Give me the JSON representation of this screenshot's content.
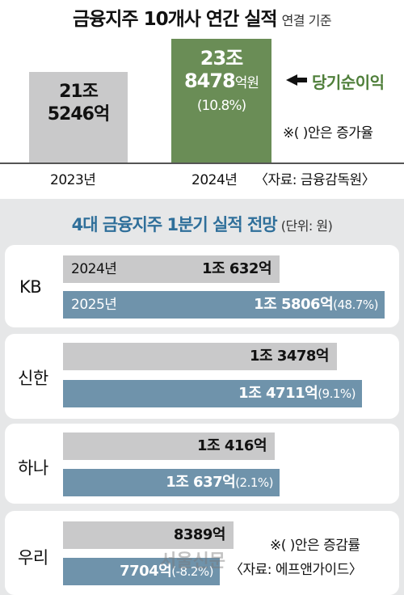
{
  "chart_data": [
    {
      "type": "bar",
      "title": "금융지주 10개사 연간 실적",
      "subtitle": "연결 기준",
      "categories": [
        "2023년",
        "2024년"
      ],
      "values": [
        21.5246,
        23.8478
      ],
      "value_labels": [
        {
          "line1": "21조",
          "line2": "5246억"
        },
        {
          "line1": "23조",
          "line2_num": "8478",
          "line2_unit": "억원",
          "pct": "(10.8%)"
        }
      ],
      "legend": "당기순이익",
      "note": "※(  )안은 증가율",
      "source": "〈자료: 금융감독원〉",
      "colors": {
        "bar_2023": "#c9c9ca",
        "bar_2024": "#6a8d56",
        "legend_text": "#4f7f3a"
      }
    },
    {
      "type": "bar",
      "title": "4대 금융지주 1분기 실적 전망",
      "unit": "(단위: 원)",
      "year_labels": {
        "prev": "2024년",
        "curr": "2025년"
      },
      "banks": [
        {
          "name": "KB",
          "v2024": 10632,
          "v2025": 15806,
          "label2024": "1조 632억",
          "label2025": "1조 5806억",
          "pct": "(48.7%)"
        },
        {
          "name": "신한",
          "v2024": 13478,
          "v2025": 14711,
          "label2024": "1조 3478억",
          "label2025": "1조 4711억",
          "pct": "(9.1%)"
        },
        {
          "name": "하나",
          "v2024": 10416,
          "v2025": 10637,
          "label2024": "1조 416억",
          "label2025": "1조 637억",
          "pct": "(2.1%)"
        },
        {
          "name": "우리",
          "v2024": 8389,
          "v2025": 7704,
          "label2024": "8389억",
          "label2025": "7704억",
          "pct": "(-8.2%)"
        }
      ],
      "note": "※(  )안은 증감률",
      "source": "〈자료: 에프앤가이드〉",
      "watermark": "서울신문",
      "colors": {
        "bar_2024": "#c9c9ca",
        "bar_2025": "#6f93ab",
        "title": "#2f6f9a",
        "panel": "#e6e7e8"
      }
    }
  ]
}
